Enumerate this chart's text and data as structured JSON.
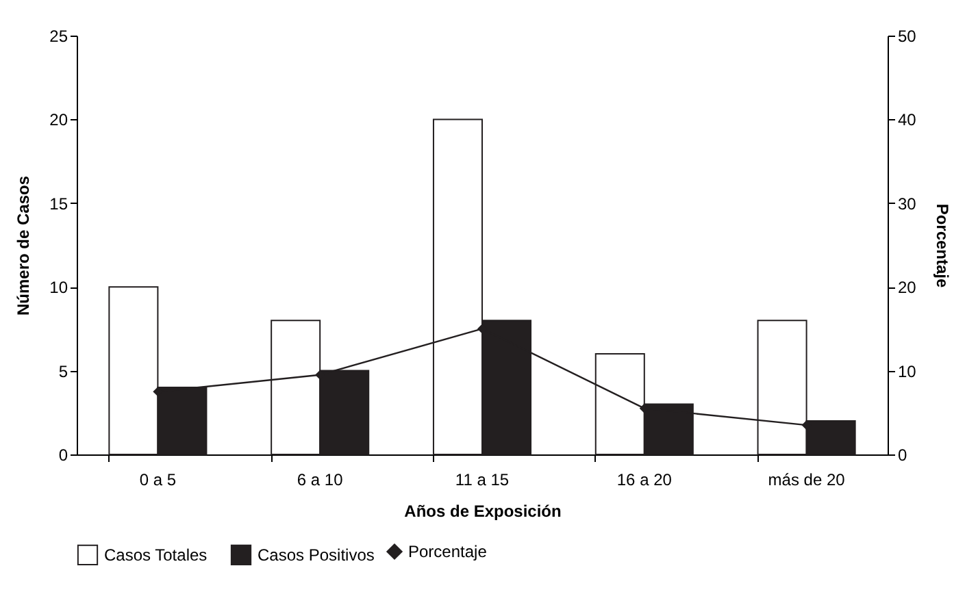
{
  "chart_data": {
    "type": "bar",
    "xlabel": "Años de Exposición",
    "ylabel": "Número de Casos",
    "y2label": "Porcentaje",
    "categories": [
      "0 a 5",
      "6 a 10",
      "11 a 15",
      "16 a 20",
      "más de 20"
    ],
    "series": [
      {
        "name": "Casos Totales",
        "color": "#ffffff",
        "values": [
          10,
          8,
          20,
          6,
          8
        ]
      },
      {
        "name": "Casos Positivos",
        "color": "#231f20",
        "values": [
          4,
          5,
          8,
          3,
          2
        ]
      },
      {
        "name": "Porcentaje",
        "type": "line",
        "axis": "y2",
        "color": "#231f20",
        "marker": "diamond",
        "values": [
          7.5,
          9.5,
          15,
          5.5,
          3.5
        ]
      }
    ],
    "ylim": [
      0,
      25
    ],
    "yticks": [
      0,
      5,
      10,
      15,
      20,
      25
    ],
    "y2lim": [
      0,
      50
    ],
    "y2ticks": [
      0,
      10,
      20,
      30,
      40,
      50
    ],
    "grid": false,
    "legend": "bottom"
  }
}
